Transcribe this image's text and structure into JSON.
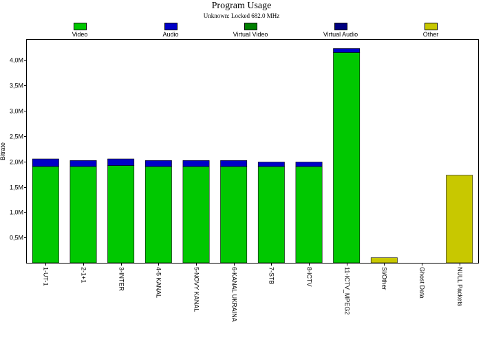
{
  "chart_data": {
    "type": "bar",
    "stacked": true,
    "title": "Program Usage",
    "subtitle": "Unknown: Locked 682.0 MHz",
    "ylabel": "Bitrate",
    "xlabel": "",
    "ylim": [
      0,
      4400000
    ],
    "yticks": [
      {
        "value": 500000,
        "label": "0,5M"
      },
      {
        "value": 1000000,
        "label": "1,0M"
      },
      {
        "value": 1500000,
        "label": "1,5M"
      },
      {
        "value": 2000000,
        "label": "2,0M"
      },
      {
        "value": 2500000,
        "label": "2,5M"
      },
      {
        "value": 3000000,
        "label": "3,0M"
      },
      {
        "value": 3500000,
        "label": "3,5M"
      },
      {
        "value": 4000000,
        "label": "4,0M"
      }
    ],
    "legend_position": "top",
    "categories": [
      "1-UT-1",
      "2-1+1",
      "3-INTER",
      "4-5 KANAL",
      "5-NOVY KANAL",
      "6-KANAL UKRAINA",
      "7-STB",
      "8-ICTV",
      "11-ICTV_MPEG2",
      "SI/Other",
      "Ghost Data",
      "NULL Packets"
    ],
    "series": [
      {
        "name": "Video",
        "color": "#00c800",
        "values": [
          1900000,
          1900000,
          1920000,
          1900000,
          1900000,
          1900000,
          1900000,
          1900000,
          4150000,
          0,
          0,
          0
        ]
      },
      {
        "name": "Audio",
        "color": "#0000c8",
        "values": [
          150000,
          120000,
          130000,
          120000,
          120000,
          120000,
          90000,
          90000,
          80000,
          0,
          0,
          0
        ]
      },
      {
        "name": "Virtual Video",
        "color": "#008000",
        "values": [
          0,
          0,
          0,
          0,
          0,
          0,
          0,
          0,
          0,
          0,
          0,
          0
        ]
      },
      {
        "name": "Virtual Audio",
        "color": "#000080",
        "values": [
          0,
          0,
          0,
          0,
          0,
          0,
          0,
          0,
          0,
          0,
          0,
          0
        ]
      },
      {
        "name": "Other",
        "color": "#c8c800",
        "values": [
          0,
          0,
          0,
          0,
          0,
          0,
          0,
          0,
          0,
          100000,
          0,
          1730000
        ]
      }
    ]
  }
}
